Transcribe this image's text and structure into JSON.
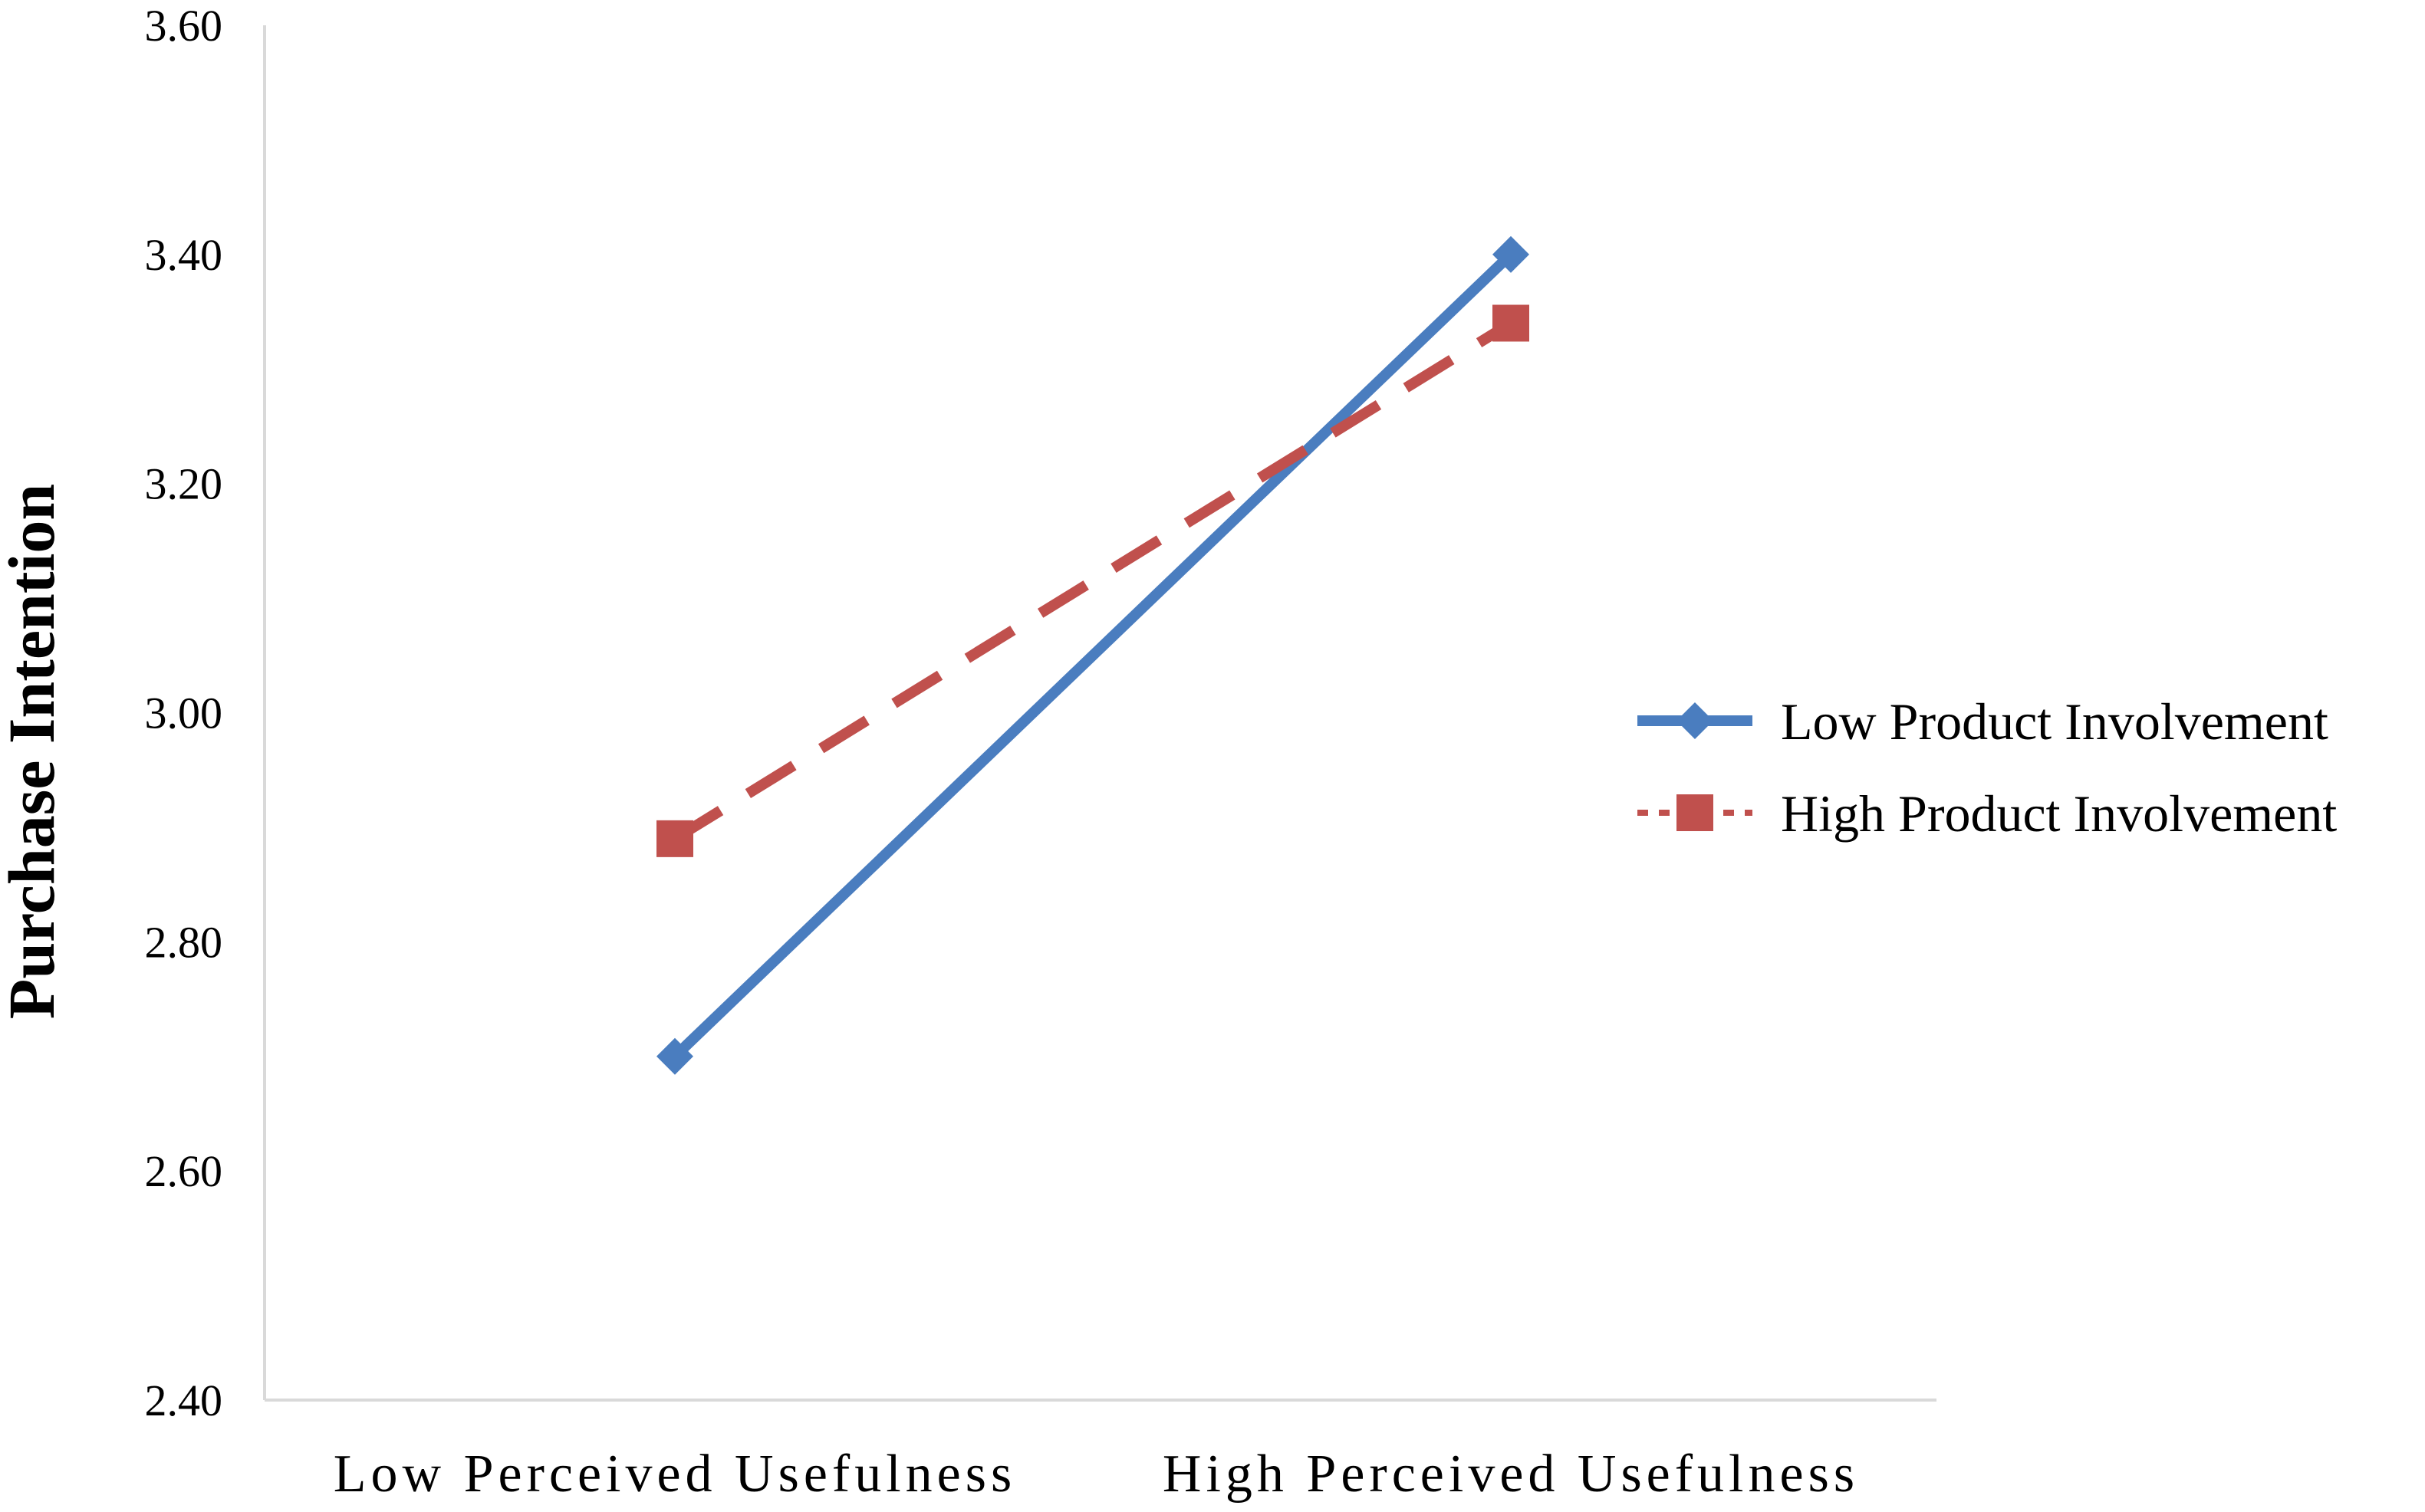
{
  "chart_data": {
    "type": "line",
    "title": "",
    "xlabel": "",
    "ylabel": "Purchase Intention",
    "categories": [
      "Low Perceived Usefulness",
      "High Perceived Usefulness"
    ],
    "ylim": [
      2.4,
      3.6
    ],
    "yticks": [
      2.4,
      2.6,
      2.8,
      3.0,
      3.2,
      3.4,
      3.6
    ],
    "ytick_labels": [
      "2.40",
      "2.60",
      "2.80",
      "3.00",
      "3.20",
      "3.40",
      "3.60"
    ],
    "grid": false,
    "legend_position": "right",
    "series": [
      {
        "name": "Low Product Involvement",
        "values": [
          2.7,
          3.4
        ],
        "color": "#4a7dbf",
        "line_style": "solid",
        "marker": "diamond"
      },
      {
        "name": "High Product Involvement",
        "values": [
          2.89,
          3.34
        ],
        "color": "#c0504d",
        "line_style": "dashed",
        "marker": "square"
      }
    ]
  }
}
